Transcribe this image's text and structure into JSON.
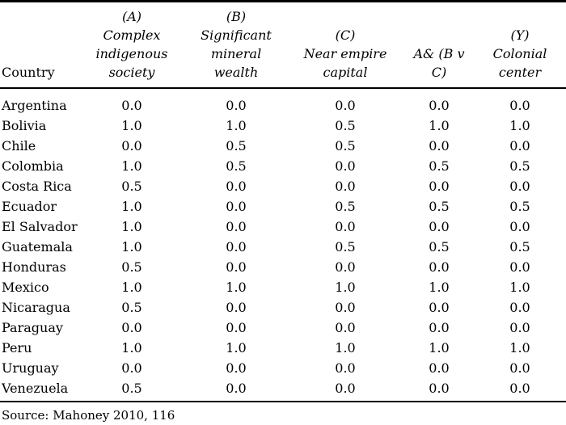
{
  "table": {
    "columns": [
      {
        "id": "country",
        "italic": false,
        "header_lines": [
          "Country"
        ]
      },
      {
        "id": "a",
        "italic": true,
        "header_lines": [
          "(A)",
          "Complex",
          "indigenous",
          "society"
        ]
      },
      {
        "id": "b",
        "italic": true,
        "header_lines": [
          "(B)",
          "Significant",
          "mineral",
          "wealth"
        ]
      },
      {
        "id": "c",
        "italic": true,
        "header_lines": [
          "(C)",
          "Near empire",
          "capital"
        ]
      },
      {
        "id": "abc",
        "italic": true,
        "header_lines": [
          "A& (B v C)"
        ]
      },
      {
        "id": "y",
        "italic": true,
        "header_lines": [
          "(Y)",
          "Colonial",
          "center"
        ]
      }
    ],
    "rows": [
      {
        "country": "Argentina",
        "values": [
          "0.0",
          "0.0",
          "0.0",
          "0.0",
          "0.0"
        ]
      },
      {
        "country": "Bolivia",
        "values": [
          "1.0",
          "1.0",
          "0.5",
          "1.0",
          "1.0"
        ]
      },
      {
        "country": "Chile",
        "values": [
          "0.0",
          "0.5",
          "0.5",
          "0.0",
          "0.0"
        ]
      },
      {
        "country": "Colombia",
        "values": [
          "1.0",
          "0.5",
          "0.0",
          "0.5",
          "0.5"
        ]
      },
      {
        "country": "Costa Rica",
        "values": [
          "0.5",
          "0.0",
          "0.0",
          "0.0",
          "0.0"
        ]
      },
      {
        "country": "Ecuador",
        "values": [
          "1.0",
          "0.0",
          "0.5",
          "0.5",
          "0.5"
        ]
      },
      {
        "country": "El Salvador",
        "values": [
          "1.0",
          "0.0",
          "0.0",
          "0.0",
          "0.0"
        ]
      },
      {
        "country": "Guatemala",
        "values": [
          "1.0",
          "0.0",
          "0.5",
          "0.5",
          "0.5"
        ]
      },
      {
        "country": "Honduras",
        "values": [
          "0.5",
          "0.0",
          "0.0",
          "0.0",
          "0.0"
        ]
      },
      {
        "country": "Mexico",
        "values": [
          "1.0",
          "1.0",
          "1.0",
          "1.0",
          "1.0"
        ]
      },
      {
        "country": "Nicaragua",
        "values": [
          "0.5",
          "0.0",
          "0.0",
          "0.0",
          "0.0"
        ]
      },
      {
        "country": "Paraguay",
        "values": [
          "0.0",
          "0.0",
          "0.0",
          "0.0",
          "0.0"
        ]
      },
      {
        "country": "Peru",
        "values": [
          "1.0",
          "1.0",
          "1.0",
          "1.0",
          "1.0"
        ]
      },
      {
        "country": "Uruguay",
        "values": [
          "0.0",
          "0.0",
          "0.0",
          "0.0",
          "0.0"
        ]
      },
      {
        "country": "Venezuela",
        "values": [
          "0.5",
          "0.0",
          "0.0",
          "0.0",
          "0.0"
        ]
      }
    ]
  },
  "source_note": "Source: Mahoney 2010, 116",
  "colors": {
    "text": "#000000",
    "background": "#ffffff",
    "rule": "#000000"
  }
}
